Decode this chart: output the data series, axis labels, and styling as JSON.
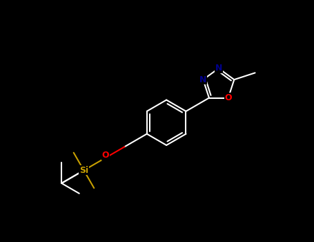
{
  "background_color": "#000000",
  "bond_color": "#ffffff",
  "oxygen_color": "#ff0000",
  "nitrogen_color": "#00008b",
  "silicon_color": "#c8a000",
  "carbon_color": "#ffffff",
  "line_width": 1.5,
  "figsize": [
    4.55,
    3.5
  ],
  "dpi": 100,
  "xlim": [
    0,
    10
  ],
  "ylim": [
    0,
    7.7
  ]
}
